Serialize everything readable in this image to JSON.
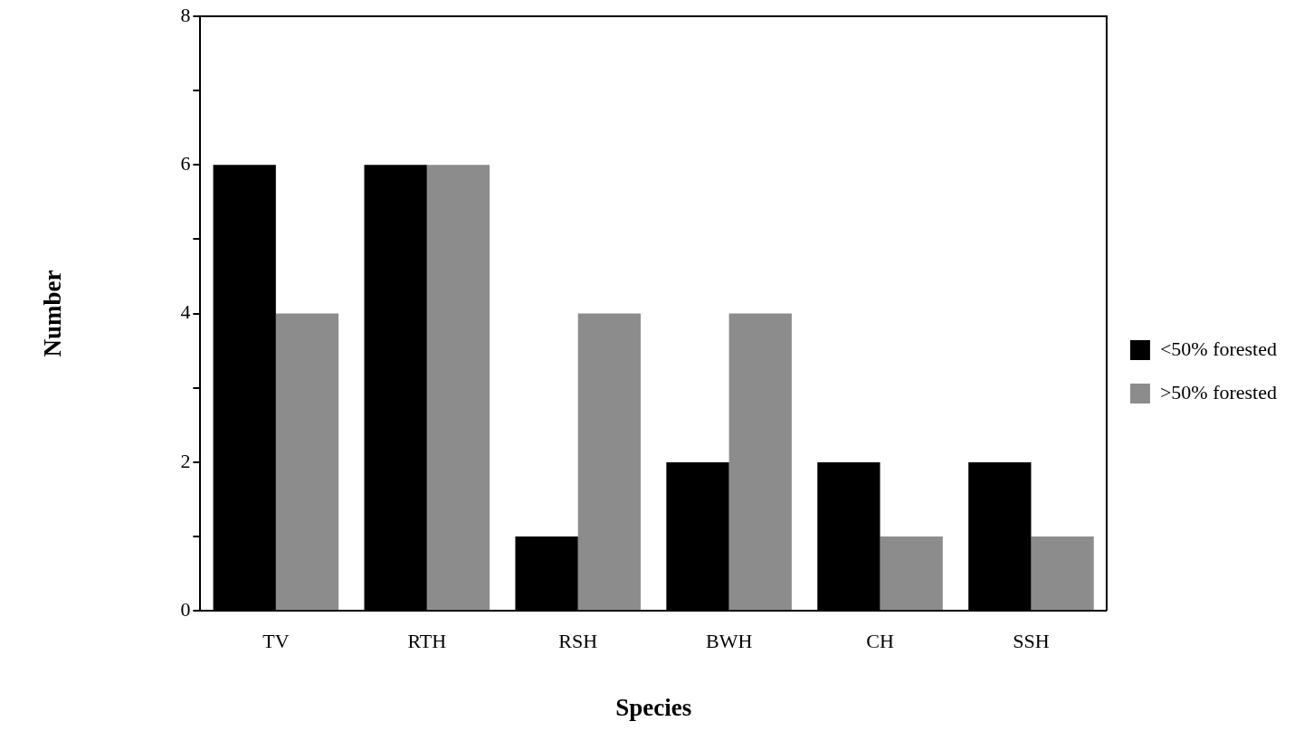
{
  "chart_data": {
    "type": "bar",
    "xlabel": "Species",
    "ylabel": "Number",
    "categories": [
      "TV",
      "RTH",
      "RSH",
      "BWH",
      "CH",
      "SSH"
    ],
    "series": [
      {
        "name": "<50% forested",
        "color": "#000000",
        "values": [
          6,
          6,
          1,
          2,
          2,
          2
        ]
      },
      {
        "name": ">50% forested",
        "color": "#8c8c8c",
        "values": [
          4,
          6,
          4,
          4,
          1,
          1
        ]
      }
    ],
    "ylim": [
      0,
      8
    ],
    "yticks": [
      0,
      {
        "value": 1,
        "label": null
      },
      2,
      {
        "value": 3,
        "label": null
      },
      4,
      {
        "value": 5,
        "label": null
      },
      6,
      {
        "value": 7,
        "label": null
      },
      8
    ],
    "grid": false,
    "legend": "right"
  }
}
